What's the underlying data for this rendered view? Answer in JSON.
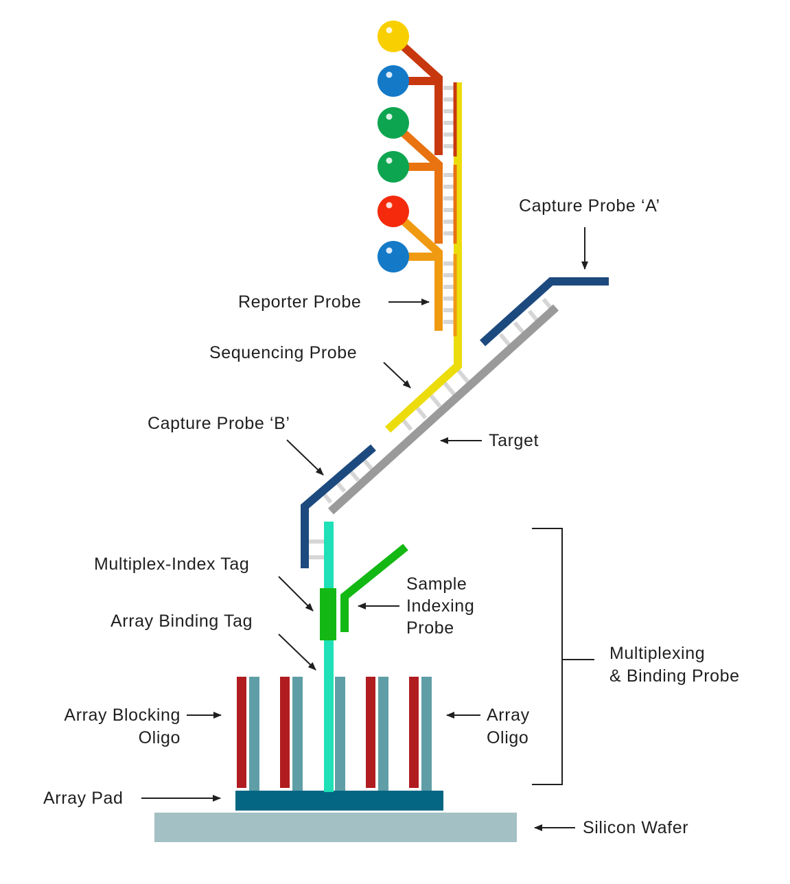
{
  "labels": {
    "capture_probe_a": "Capture Probe ‘A’",
    "reporter_probe": "Reporter Probe",
    "sequencing_probe": "Sequencing Probe",
    "capture_probe_b": "Capture Probe ‘B’",
    "target": "Target",
    "multiplex_index_tag": "Multiplex-Index Tag",
    "sample_indexing_probe": [
      "Sample",
      "Indexing",
      "Probe"
    ],
    "array_binding_tag": "Array Binding Tag",
    "multiplexing_binding_probe": [
      "Multiplexing",
      "& Binding Probe"
    ],
    "array_blocking_oligo": [
      "Array Blocking",
      "Oligo"
    ],
    "array_oligo": [
      "Array",
      "Oligo"
    ],
    "array_pad": "Array Pad",
    "silicon_wafer": "Silicon Wafer"
  },
  "colors": {
    "reporter_dark": "#c8380e",
    "reporter_mid": "#e87310",
    "reporter_light": "#f09a12",
    "sequencing_probe": "#ecdc0c",
    "capture_probe": "#1d4a7e",
    "target": "#9a9a9a",
    "rung": "#d6d6d6",
    "index_tag": "#1fe0b6",
    "sample_index": "#14b814",
    "blocking_oligo": "#b01c20",
    "array_oligo": "#5f9ea6",
    "array_pad": "#046683",
    "silicon_wafer": "#a3c0c4",
    "dot_yellow": "#f8cf00",
    "dot_blue": "#1479c7",
    "dot_green": "#0ea550",
    "dot_red": "#f52a0d"
  },
  "reporter_dots": [
    "dot_yellow",
    "dot_blue",
    "dot_green",
    "dot_green",
    "dot_red",
    "dot_blue"
  ]
}
